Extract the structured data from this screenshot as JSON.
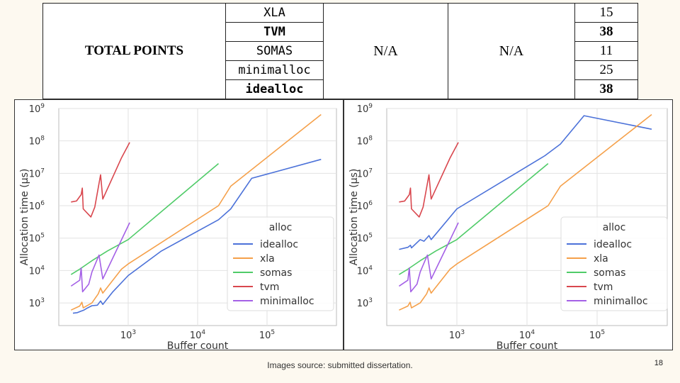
{
  "table": {
    "total_points_label": "TOTAL POINTS",
    "rows": [
      {
        "alg": "XLA",
        "score": "15",
        "bold": false
      },
      {
        "alg": "TVM",
        "score": "38",
        "bold": true
      },
      {
        "alg": "SOMAS",
        "score": "11",
        "bold": false
      },
      {
        "alg": "minimalloc",
        "score": "25",
        "bold": false
      },
      {
        "alg": "idealloc",
        "score": "38",
        "bold": true
      }
    ],
    "na_left": "N/A",
    "na_right": "N/A"
  },
  "colors": {
    "idealloc": "#4c72d9",
    "xla": "#f5a04a",
    "somas": "#4fcb68",
    "tvm": "#d9474e",
    "minimalloc": "#a460e6"
  },
  "chart_data": [
    {
      "type": "line",
      "xlabel": "Buffer count",
      "ylabel": "Allocation time (μs)",
      "x_scale": "log",
      "y_scale": "log",
      "xlim": [
        100,
        1000000
      ],
      "ylim": [
        200,
        1000000000
      ],
      "x_ticks": [
        {
          "v": 1000,
          "b": "10",
          "e": "3"
        },
        {
          "v": 10000,
          "b": "10",
          "e": "4"
        },
        {
          "v": 100000,
          "b": "10",
          "e": "5"
        }
      ],
      "y_ticks": [
        {
          "v": 1000,
          "b": "10",
          "e": "3"
        },
        {
          "v": 10000,
          "b": "10",
          "e": "4"
        },
        {
          "v": 100000,
          "b": "10",
          "e": "5"
        },
        {
          "v": 1000000,
          "b": "10",
          "e": "6"
        },
        {
          "v": 10000000,
          "b": "10",
          "e": "7"
        },
        {
          "v": 100000000,
          "b": "10",
          "e": "8"
        },
        {
          "v": 1000000000,
          "b": "10",
          "e": "9"
        }
      ],
      "grid": true,
      "legend_title": "alloc",
      "legend_position": "center-right",
      "series": [
        {
          "name": "idealloc",
          "key": "idealloc",
          "points": [
            [
              160,
              480
            ],
            [
              185,
              500
            ],
            [
              210,
              560
            ],
            [
              230,
              600
            ],
            [
              260,
              700
            ],
            [
              300,
              820
            ],
            [
              360,
              850
            ],
            [
              400,
              1150
            ],
            [
              430,
              900
            ],
            [
              600,
              2200
            ],
            [
              1000,
              7000
            ],
            [
              3000,
              40000
            ],
            [
              20000,
              370000
            ],
            [
              30000,
              800000
            ],
            [
              60000,
              7000000
            ],
            [
              600000,
              27000000
            ]
          ]
        },
        {
          "name": "xla",
          "key": "xla",
          "points": [
            [
              150,
              600
            ],
            [
              200,
              800
            ],
            [
              215,
              1050
            ],
            [
              225,
              700
            ],
            [
              300,
              1000
            ],
            [
              370,
              1900
            ],
            [
              400,
              2900
            ],
            [
              430,
              2000
            ],
            [
              800,
              11000
            ],
            [
              1000,
              16000
            ],
            [
              20000,
              1000000
            ],
            [
              30000,
              4000000
            ],
            [
              600000,
              650000000
            ]
          ]
        },
        {
          "name": "somas",
          "key": "somas",
          "points": [
            [
              150,
              7500
            ],
            [
              200,
              11000
            ],
            [
              300,
              20000
            ],
            [
              500,
              40000
            ],
            [
              1000,
              90000
            ],
            [
              20000,
              20000000
            ]
          ]
        },
        {
          "name": "tvm",
          "key": "tvm",
          "points": [
            [
              150,
              1300000
            ],
            [
              180,
              1400000
            ],
            [
              210,
              2200000
            ],
            [
              218,
              3500000
            ],
            [
              225,
              800000
            ],
            [
              290,
              450000
            ],
            [
              330,
              900000
            ],
            [
              400,
              9000000
            ],
            [
              430,
              1600000
            ],
            [
              800,
              30000000
            ],
            [
              1050,
              90000000
            ]
          ]
        },
        {
          "name": "minimalloc",
          "key": "minimalloc",
          "points": [
            [
              150,
              3300
            ],
            [
              200,
              5000
            ],
            [
              210,
              12000
            ],
            [
              220,
              2200
            ],
            [
              270,
              3800
            ],
            [
              300,
              9000
            ],
            [
              380,
              30000
            ],
            [
              430,
              5500
            ],
            [
              1050,
              300000
            ]
          ]
        }
      ]
    },
    {
      "type": "line",
      "xlabel": "Buffer count",
      "ylabel": "Allocation time (μs)",
      "x_scale": "log",
      "y_scale": "log",
      "xlim": [
        100,
        1000000
      ],
      "ylim": [
        200,
        1000000000
      ],
      "x_ticks": [
        {
          "v": 1000,
          "b": "10",
          "e": "3"
        },
        {
          "v": 10000,
          "b": "10",
          "e": "4"
        },
        {
          "v": 100000,
          "b": "10",
          "e": "5"
        }
      ],
      "y_ticks": [
        {
          "v": 1000,
          "b": "10",
          "e": "3"
        },
        {
          "v": 10000,
          "b": "10",
          "e": "4"
        },
        {
          "v": 100000,
          "b": "10",
          "e": "5"
        },
        {
          "v": 1000000,
          "b": "10",
          "e": "6"
        },
        {
          "v": 10000000,
          "b": "10",
          "e": "7"
        },
        {
          "v": 100000000,
          "b": "10",
          "e": "8"
        },
        {
          "v": 1000000000,
          "b": "10",
          "e": "9"
        }
      ],
      "grid": true,
      "legend_title": "alloc",
      "legend_position": "lower-right",
      "series": [
        {
          "name": "idealloc",
          "key": "idealloc",
          "points": [
            [
              150,
              45000
            ],
            [
              200,
              52000
            ],
            [
              218,
              60000
            ],
            [
              225,
              50000
            ],
            [
              300,
              90000
            ],
            [
              340,
              80000
            ],
            [
              400,
              120000
            ],
            [
              430,
              90000
            ],
            [
              1000,
              800000
            ],
            [
              18000,
              35000000
            ],
            [
              30000,
              80000000
            ],
            [
              65000,
              600000000
            ],
            [
              600000,
              230000000
            ]
          ]
        },
        {
          "name": "xla",
          "key": "xla",
          "points": [
            [
              150,
              600
            ],
            [
              200,
              800
            ],
            [
              215,
              1050
            ],
            [
              225,
              700
            ],
            [
              300,
              1000
            ],
            [
              370,
              1900
            ],
            [
              400,
              2900
            ],
            [
              430,
              2000
            ],
            [
              800,
              11000
            ],
            [
              1000,
              16000
            ],
            [
              20000,
              1000000
            ],
            [
              30000,
              4000000
            ],
            [
              600000,
              650000000
            ]
          ]
        },
        {
          "name": "somas",
          "key": "somas",
          "points": [
            [
              150,
              7500
            ],
            [
              200,
              11000
            ],
            [
              300,
              20000
            ],
            [
              500,
              40000
            ],
            [
              1000,
              90000
            ],
            [
              20000,
              20000000
            ]
          ]
        },
        {
          "name": "tvm",
          "key": "tvm",
          "points": [
            [
              150,
              1300000
            ],
            [
              180,
              1400000
            ],
            [
              210,
              2200000
            ],
            [
              218,
              3500000
            ],
            [
              225,
              800000
            ],
            [
              290,
              450000
            ],
            [
              330,
              900000
            ],
            [
              400,
              9000000
            ],
            [
              430,
              1600000
            ],
            [
              800,
              30000000
            ],
            [
              1050,
              90000000
            ]
          ]
        },
        {
          "name": "minimalloc",
          "key": "minimalloc",
          "points": [
            [
              150,
              3300
            ],
            [
              200,
              5000
            ],
            [
              210,
              12000
            ],
            [
              220,
              2200
            ],
            [
              270,
              3800
            ],
            [
              300,
              9000
            ],
            [
              380,
              30000
            ],
            [
              430,
              5500
            ],
            [
              1050,
              300000
            ]
          ]
        }
      ]
    }
  ],
  "footnote": "Images source: submitted dissertation.",
  "page_number": "18"
}
